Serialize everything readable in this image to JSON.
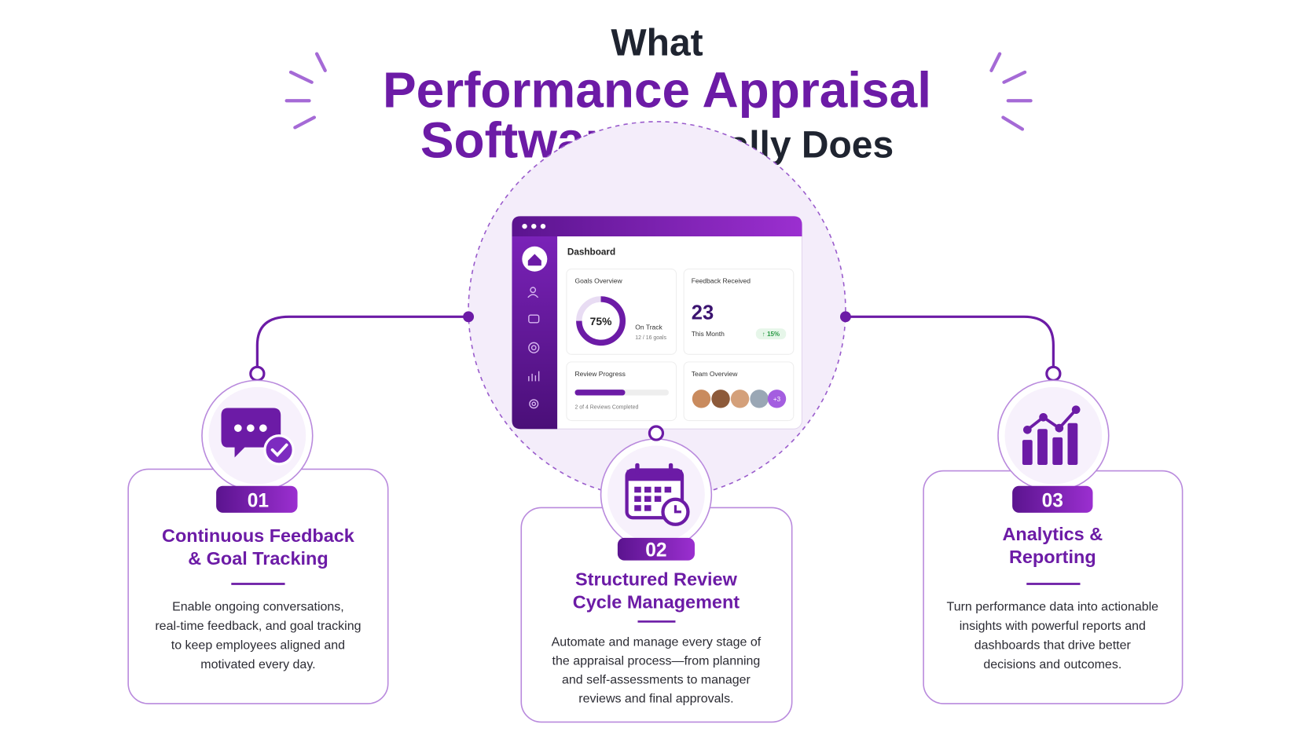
{
  "title": {
    "line1": "What",
    "highlight1": "Performance Appraisal",
    "highlight2": "Software",
    "rest": "Actually Does"
  },
  "dashboard": {
    "heading": "Dashboard",
    "goals": {
      "title": "Goals Overview",
      "percent": "75%",
      "status": "On Track",
      "detail": "12 / 16 goals"
    },
    "feedback": {
      "title": "Feedback Received",
      "count": "23",
      "period": "This Month",
      "change": "↑ 15%"
    },
    "review": {
      "title": "Review Progress",
      "detail": "2 of 4 Reviews Completed"
    },
    "team": {
      "title": "Team Overview",
      "more": "+3"
    }
  },
  "features": [
    {
      "number": "01",
      "title_lines": [
        "Continuous Feedback",
        "& Goal Tracking"
      ],
      "description_lines": [
        "Enable ongoing conversations,",
        "real-time feedback, and goal tracking",
        "to keep employees aligned and",
        "motivated every day."
      ]
    },
    {
      "number": "02",
      "title_lines": [
        "Structured Review",
        "Cycle Management"
      ],
      "description_lines": [
        "Automate and manage every stage of",
        "the appraisal process—from planning",
        "and self-assessments to manager",
        "reviews and final approvals."
      ]
    },
    {
      "number": "03",
      "title_lines": [
        "Analytics &",
        "Reporting"
      ],
      "description_lines": [
        "Turn performance data into actionable",
        "insights with powerful reports and",
        "dashboards that drive better",
        "decisions and outcomes."
      ]
    }
  ]
}
